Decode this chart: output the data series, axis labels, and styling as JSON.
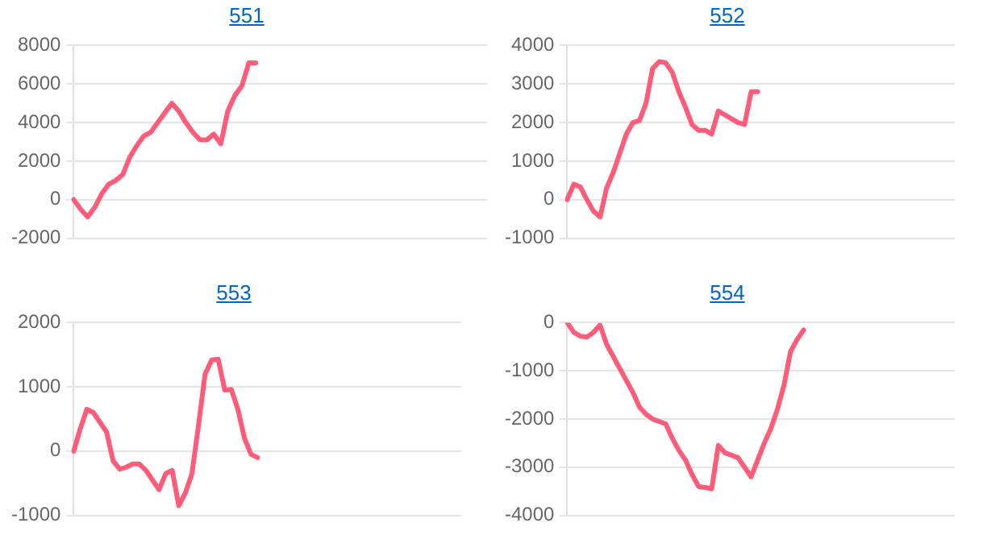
{
  "chart_data": [
    {
      "type": "line",
      "title": "551",
      "tick_labels": "y",
      "grid": "y",
      "legend": false,
      "marker": "none",
      "ylim": [
        -2000,
        8000
      ],
      "yticks": [
        -2000,
        0,
        2000,
        4000,
        6000,
        8000
      ],
      "categories": [
        null,
        null,
        null,
        null,
        null,
        null,
        null,
        null,
        null,
        null,
        null,
        null,
        null,
        null,
        null,
        null,
        null,
        null,
        null,
        null,
        null,
        null,
        null,
        null,
        null,
        null,
        null,
        null,
        null,
        null,
        null,
        null,
        null,
        null,
        null,
        null,
        null,
        null,
        null,
        null,
        null,
        null,
        null,
        null,
        null,
        null,
        null,
        null,
        null,
        null,
        null,
        null,
        null,
        null,
        null,
        null,
        null,
        null,
        null,
        null
      ],
      "series": [
        {
          "color": "#ff5c7a",
          "values": [
            0,
            -500,
            -900,
            -400,
            300,
            800,
            1000,
            1300,
            2200,
            2800,
            3300,
            3500,
            4000,
            4500,
            5000,
            4600,
            4000,
            3500,
            3100,
            3100,
            3400,
            2900,
            4600,
            5400,
            5900,
            7100,
            7100,
            null,
            null,
            null,
            null,
            null,
            null,
            null,
            null,
            null,
            null,
            null,
            null,
            null,
            null,
            null,
            null,
            null,
            null,
            null,
            null,
            null,
            null,
            null,
            null,
            null,
            null,
            null,
            null,
            null,
            null,
            null,
            null,
            null
          ]
        }
      ]
    },
    {
      "type": "line",
      "title": "552",
      "tick_labels": "y",
      "grid": "y",
      "legend": false,
      "marker": "none",
      "ylim": [
        -1000,
        4000
      ],
      "yticks": [
        -1000,
        0,
        1000,
        2000,
        3000,
        4000
      ],
      "categories": [
        null,
        null,
        null,
        null,
        null,
        null,
        null,
        null,
        null,
        null,
        null,
        null,
        null,
        null,
        null,
        null,
        null,
        null,
        null,
        null,
        null,
        null,
        null,
        null,
        null,
        null,
        null,
        null,
        null,
        null,
        null,
        null,
        null,
        null,
        null,
        null,
        null,
        null,
        null,
        null,
        null,
        null,
        null,
        null,
        null,
        null,
        null,
        null,
        null,
        null,
        null,
        null,
        null,
        null,
        null,
        null,
        null,
        null,
        null,
        null
      ],
      "series": [
        {
          "color": "#ff5c7a",
          "values": [
            0,
            400,
            330,
            0,
            -300,
            -450,
            300,
            700,
            1200,
            1700,
            2000,
            2050,
            2500,
            3400,
            3580,
            3550,
            3300,
            2800,
            2400,
            1950,
            1800,
            1800,
            1700,
            2300,
            2200,
            2100,
            2000,
            1950,
            2800,
            2800,
            null,
            null,
            null,
            null,
            null,
            null,
            null,
            null,
            null,
            null,
            null,
            null,
            null,
            null,
            null,
            null,
            null,
            null,
            null,
            null,
            null,
            null,
            null,
            null,
            null,
            null,
            null,
            null,
            null,
            null
          ]
        }
      ]
    },
    {
      "type": "line",
      "title": "553",
      "tick_labels": "y",
      "grid": "y",
      "legend": false,
      "marker": "none",
      "ylim": [
        -1000,
        2000
      ],
      "yticks": [
        -1000,
        0,
        1000,
        2000
      ],
      "categories": [
        null,
        null,
        null,
        null,
        null,
        null,
        null,
        null,
        null,
        null,
        null,
        null,
        null,
        null,
        null,
        null,
        null,
        null,
        null,
        null,
        null,
        null,
        null,
        null,
        null,
        null,
        null,
        null,
        null,
        null,
        null,
        null,
        null,
        null,
        null,
        null,
        null,
        null,
        null,
        null,
        null,
        null,
        null,
        null,
        null,
        null,
        null,
        null,
        null,
        null,
        null,
        null,
        null,
        null,
        null,
        null,
        null,
        null,
        null,
        null
      ],
      "series": [
        {
          "color": "#ff5c7a",
          "values": [
            0,
            350,
            650,
            600,
            450,
            300,
            -150,
            -280,
            -250,
            -200,
            -200,
            -300,
            -450,
            -600,
            -350,
            -300,
            -850,
            -650,
            -350,
            400,
            1200,
            1420,
            1430,
            950,
            960,
            650,
            200,
            -50,
            -100,
            null,
            null,
            null,
            null,
            null,
            null,
            null,
            null,
            null,
            null,
            null,
            null,
            null,
            null,
            null,
            null,
            null,
            null,
            null,
            null,
            null,
            null,
            null,
            null,
            null,
            null,
            null,
            null,
            null,
            null,
            null
          ]
        }
      ]
    },
    {
      "type": "line",
      "title": "554",
      "tick_labels": "y",
      "grid": "y",
      "legend": false,
      "marker": "none",
      "ylim": [
        -4000,
        0
      ],
      "yticks": [
        -4000,
        -3000,
        -2000,
        -1000,
        0
      ],
      "categories": [
        null,
        null,
        null,
        null,
        null,
        null,
        null,
        null,
        null,
        null,
        null,
        null,
        null,
        null,
        null,
        null,
        null,
        null,
        null,
        null,
        null,
        null,
        null,
        null,
        null,
        null,
        null,
        null,
        null,
        null,
        null,
        null,
        null,
        null,
        null,
        null,
        null,
        null,
        null,
        null,
        null,
        null,
        null,
        null,
        null,
        null,
        null,
        null,
        null,
        null,
        null,
        null,
        null,
        null,
        null,
        null,
        null,
        null,
        null,
        null
      ],
      "series": [
        {
          "color": "#ff5c7a",
          "values": [
            0,
            -200,
            -280,
            -300,
            -200,
            -50,
            -450,
            -700,
            -950,
            -1200,
            -1450,
            -1750,
            -1900,
            -2000,
            -2050,
            -2100,
            -2400,
            -2650,
            -2850,
            -3150,
            -3400,
            -3420,
            -3450,
            -2550,
            -2700,
            -2750,
            -2800,
            -3000,
            -3200,
            -2850,
            -2500,
            -2200,
            -1800,
            -1300,
            -600,
            -350,
            -150,
            null,
            null,
            null,
            null,
            null,
            null,
            null,
            null,
            null,
            null,
            null,
            null,
            null,
            null,
            null,
            null,
            null,
            null,
            null,
            null,
            null,
            null,
            null
          ]
        }
      ]
    }
  ]
}
